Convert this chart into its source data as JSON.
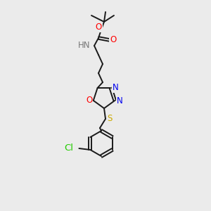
{
  "bg_color": "#ebebeb",
  "bond_color": "#1a1a1a",
  "atom_colors": {
    "O": "#ff0000",
    "N": "#0000ee",
    "S": "#ccaa00",
    "Cl": "#22cc00",
    "H": "#777777"
  },
  "figsize": [
    3.0,
    3.0
  ],
  "dpi": 100,
  "lw": 1.4
}
